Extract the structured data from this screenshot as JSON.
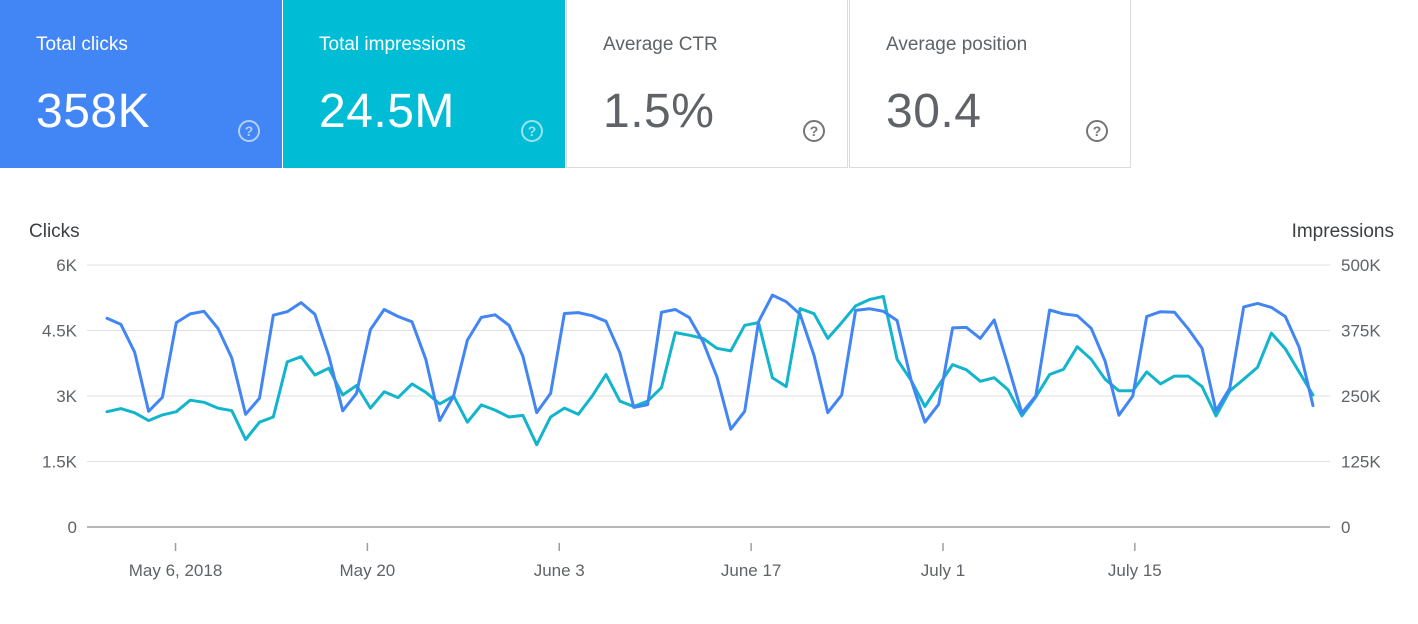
{
  "cards": [
    {
      "label": "Total clicks",
      "value": "358K"
    },
    {
      "label": "Total impressions",
      "value": "24.5M"
    },
    {
      "label": "Average CTR",
      "value": "1.5%"
    },
    {
      "label": "Average position",
      "value": "30.4"
    }
  ],
  "help_glyph": "?",
  "colors": {
    "clicks": "#4285f4",
    "impressions": "#12b5cb",
    "grid": "#e0e0e0",
    "axis": "#9e9e9e"
  },
  "chart_data": {
    "type": "line",
    "y_left_label": "Clicks",
    "y_right_label": "Impressions",
    "y_left_ticks": [
      "0",
      "1.5K",
      "3K",
      "4.5K",
      "6K"
    ],
    "y_right_ticks": [
      "0",
      "125K",
      "250K",
      "375K",
      "500K"
    ],
    "y_left_range": [
      0,
      6000
    ],
    "y_right_range": [
      0,
      500000
    ],
    "x_range": [
      "2018-05-01",
      "2018-07-28"
    ],
    "x_ticks": [
      {
        "date": "2018-05-06",
        "label": "May 6, 2018"
      },
      {
        "date": "2018-05-20",
        "label": "May 20"
      },
      {
        "date": "2018-06-03",
        "label": "June 3"
      },
      {
        "date": "2018-06-17",
        "label": "June 17"
      },
      {
        "date": "2018-07-01",
        "label": "July 1"
      },
      {
        "date": "2018-07-15",
        "label": "July 15"
      }
    ],
    "grid": true,
    "series": [
      {
        "name": "Clicks",
        "axis": "left",
        "values": [
          4780,
          4640,
          4000,
          2650,
          2970,
          4680,
          4880,
          4940,
          4550,
          3870,
          2580,
          2950,
          4850,
          4930,
          5140,
          4870,
          3920,
          2660,
          3060,
          4520,
          4980,
          4820,
          4700,
          3840,
          2440,
          3000,
          4280,
          4800,
          4860,
          4620,
          3910,
          2620,
          3060,
          4890,
          4910,
          4840,
          4710,
          3990,
          2740,
          2800,
          4920,
          4980,
          4800,
          4240,
          3440,
          2240,
          2650,
          4700,
          5310,
          5160,
          4870,
          3930,
          2620,
          3020,
          4960,
          5000,
          4940,
          4730,
          3370,
          2400,
          2810,
          4560,
          4570,
          4320,
          4740,
          3700,
          2610,
          3000,
          4970,
          4880,
          4840,
          4550,
          3800,
          2560,
          3000,
          4820,
          4930,
          4920,
          4540,
          4090,
          2660,
          3180,
          5040,
          5120,
          5030,
          4820,
          4120,
          2780
        ]
      },
      {
        "name": "Impressions",
        "axis": "right",
        "values": [
          220000,
          226000,
          218000,
          203000,
          214000,
          220000,
          242000,
          238000,
          227000,
          222000,
          167000,
          200000,
          210000,
          315000,
          325000,
          290000,
          303000,
          252000,
          270000,
          227000,
          258000,
          247000,
          273000,
          257000,
          235000,
          250000,
          200000,
          233000,
          223000,
          210000,
          213000,
          157000,
          210000,
          227000,
          215000,
          250000,
          291000,
          240000,
          230000,
          240000,
          266000,
          371000,
          366000,
          360000,
          341000,
          336000,
          385000,
          390000,
          285000,
          268000,
          417000,
          407000,
          360000,
          390000,
          422000,
          434000,
          440000,
          320000,
          280000,
          230000,
          270000,
          310000,
          300000,
          278000,
          285000,
          262000,
          212000,
          248000,
          291000,
          301000,
          344000,
          320000,
          282000,
          260000,
          260000,
          296000,
          273000,
          288000,
          288000,
          268000,
          212000,
          260000,
          282000,
          305000,
          370000,
          340000,
          296000,
          252000
        ]
      }
    ]
  }
}
